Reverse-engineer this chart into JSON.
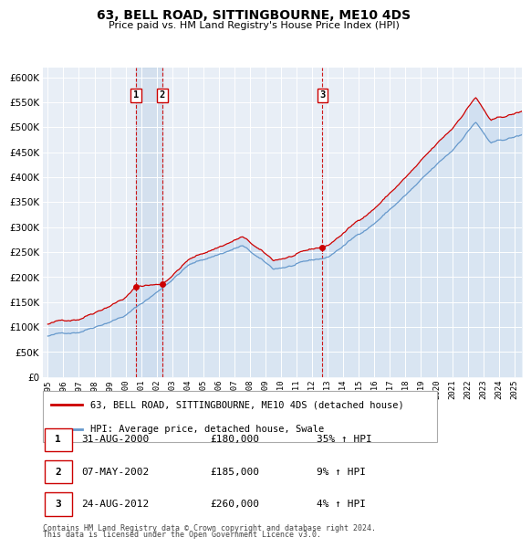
{
  "title": "63, BELL ROAD, SITTINGBOURNE, ME10 4DS",
  "subtitle": "Price paid vs. HM Land Registry's House Price Index (HPI)",
  "legend_line1": "63, BELL ROAD, SITTINGBOURNE, ME10 4DS (detached house)",
  "legend_line2": "HPI: Average price, detached house, Swale",
  "footnote1": "Contains HM Land Registry data © Crown copyright and database right 2024.",
  "footnote2": "This data is licensed under the Open Government Licence v3.0.",
  "sales": [
    {
      "num": 1,
      "date": "31-AUG-2000",
      "price": 180000,
      "pct": "35%",
      "dir": "↑",
      "x_year": 2000.67
    },
    {
      "num": 2,
      "date": "07-MAY-2002",
      "price": 185000,
      "pct": "9%",
      "dir": "↑",
      "x_year": 2002.36
    },
    {
      "num": 3,
      "date": "24-AUG-2012",
      "price": 260000,
      "pct": "4%",
      "dir": "↑",
      "x_year": 2012.65
    }
  ],
  "red_color": "#cc0000",
  "blue_color": "#6699cc",
  "blue_fill": "#ccddf0",
  "bg_color": "#e8eef6",
  "ylim": [
    0,
    620000
  ],
  "yticks": [
    0,
    50000,
    100000,
    150000,
    200000,
    250000,
    300000,
    350000,
    400000,
    450000,
    500000,
    550000,
    600000
  ],
  "x_start": 1995,
  "x_end": 2025.5,
  "x_ticks": [
    1995,
    1996,
    1997,
    1998,
    1999,
    2000,
    2001,
    2002,
    2003,
    2004,
    2005,
    2006,
    2007,
    2008,
    2009,
    2010,
    2011,
    2012,
    2013,
    2014,
    2015,
    2016,
    2017,
    2018,
    2019,
    2020,
    2021,
    2022,
    2023,
    2024,
    2025
  ]
}
